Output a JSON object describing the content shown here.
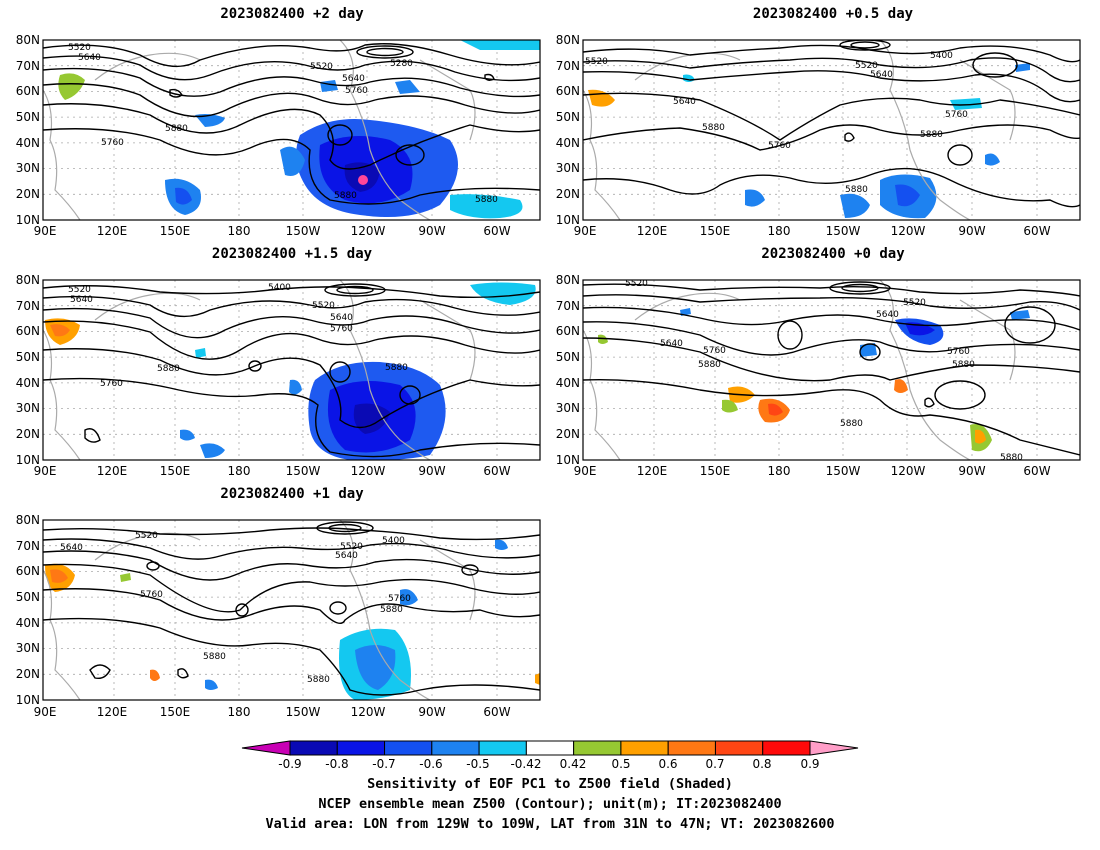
{
  "panels": [
    {
      "id": "p2",
      "title": "2023082400 +2 day"
    },
    {
      "id": "p05",
      "title": "2023082400 +0.5 day"
    },
    {
      "id": "p15",
      "title": "2023082400 +1.5 day"
    },
    {
      "id": "p0",
      "title": "2023082400 +0 day"
    },
    {
      "id": "p1",
      "title": "2023082400 +1 day"
    }
  ],
  "axes": {
    "lat_labels": [
      "80N",
      "70N",
      "60N",
      "50N",
      "40N",
      "30N",
      "20N",
      "10N"
    ],
    "lon_labels": [
      "90E",
      "120E",
      "150E",
      "180",
      "150W",
      "120W",
      "90W",
      "60W"
    ]
  },
  "contour_labels": {
    "p2": [
      "5520",
      "5640",
      "5280",
      "5520",
      "5640",
      "5760",
      "5880",
      "5760",
      "5880",
      "5880"
    ],
    "p05": [
      "5520",
      "5400",
      "5520",
      "5640",
      "5640",
      "5880",
      "5760",
      "5760",
      "5880",
      "5880"
    ],
    "p15": [
      "5520",
      "5640",
      "5400",
      "5520",
      "5640",
      "5760",
      "5880",
      "5760",
      "5880"
    ],
    "p0": [
      "5520",
      "5520",
      "5640",
      "5640",
      "5760",
      "5880",
      "5760",
      "5880",
      "5880",
      "5880"
    ],
    "p1": [
      "5640",
      "5520",
      "5520",
      "5400",
      "5640",
      "5760",
      "5760",
      "5880",
      "5880",
      "5880"
    ]
  },
  "colorbar": {
    "labels": [
      "-0.9",
      "-0.8",
      "-0.7",
      "-0.6",
      "-0.5",
      "-0.42",
      "0.42",
      "0.5",
      "0.6",
      "0.7",
      "0.8",
      "0.9"
    ],
    "colors": [
      "#0a0ab4",
      "#0a14e6",
      "#1450f0",
      "#1e82f0",
      "#14c8f0",
      "#ffffff",
      "#96c832",
      "#ffa000",
      "#ff7814",
      "#ff4614",
      "#ff0a0a"
    ],
    "low_end_color": "#c800b4",
    "high_end_color": "#ff9ec8"
  },
  "colors": {
    "coast": "#aaaaaa",
    "contour": "#000000",
    "grid": "#aaaaaa"
  },
  "footer": {
    "line1": "Sensitivity of EOF PC1 to Z500 field (Shaded)",
    "line2": "NCEP ensemble mean Z500 (Contour); unit(m); IT:2023082400",
    "line3": "Valid area: LON from 129W to 109W, LAT from 31N to 47N; VT: 2023082600"
  }
}
